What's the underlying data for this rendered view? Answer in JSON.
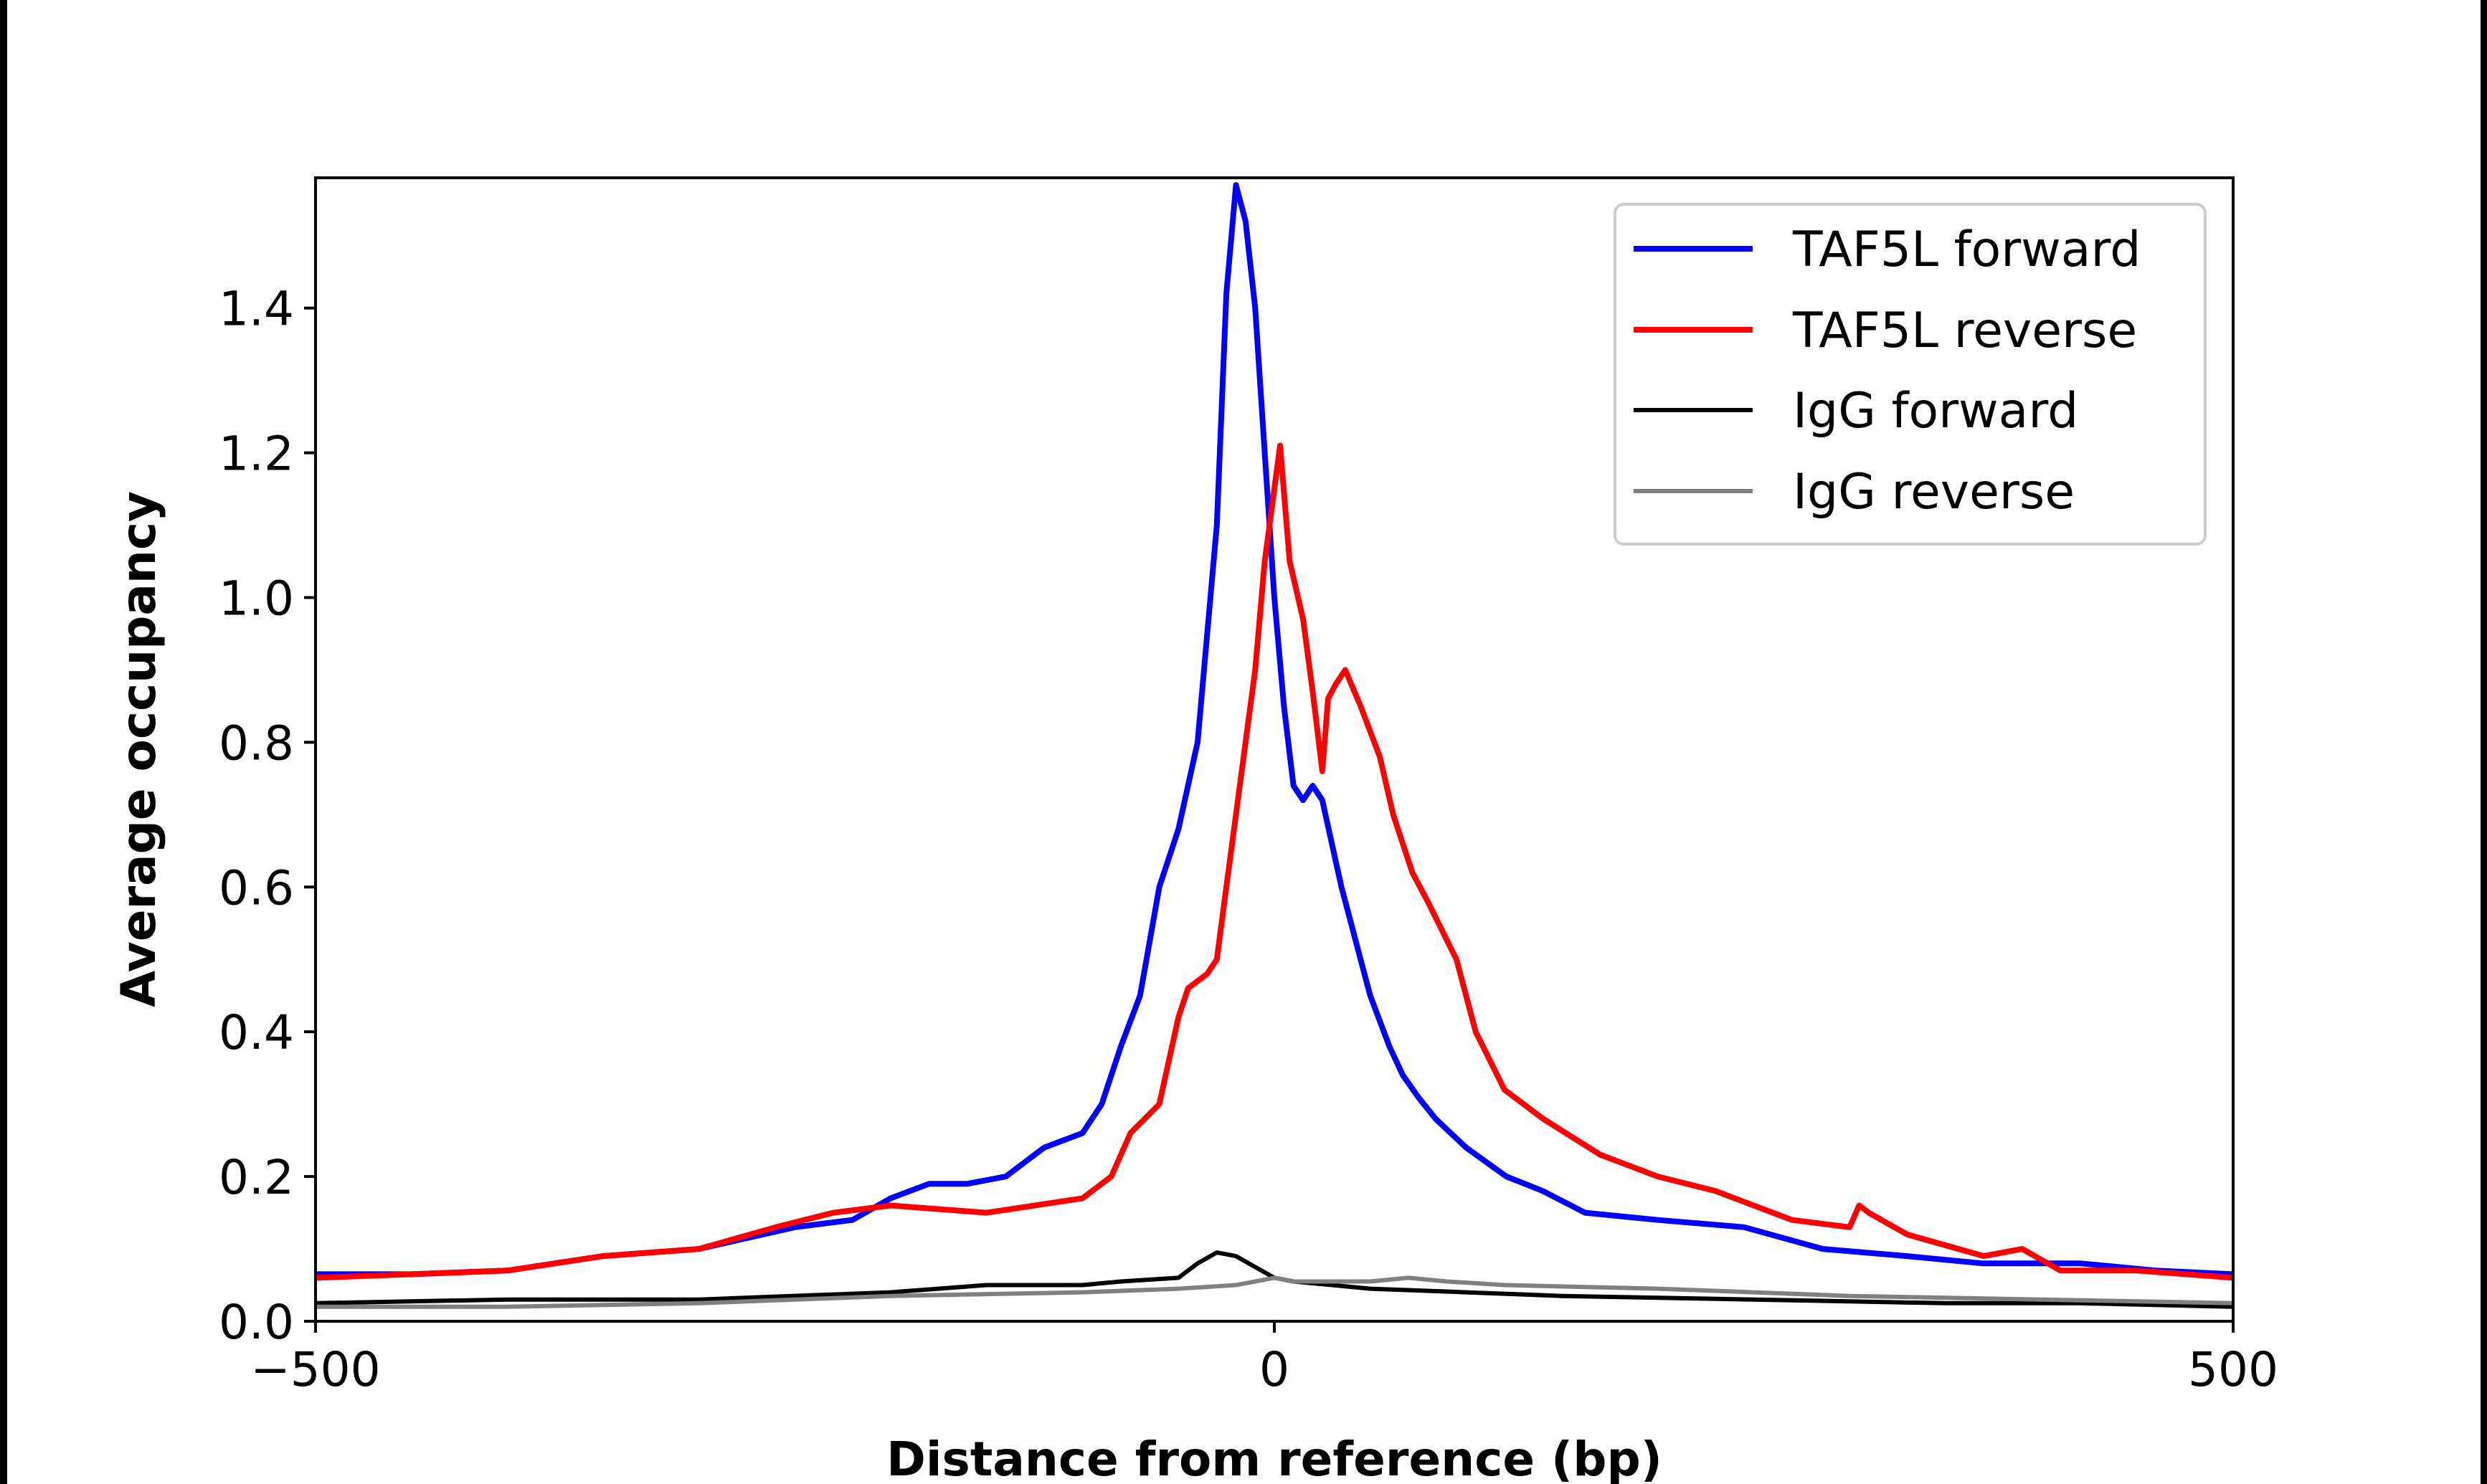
{
  "chart_data": {
    "type": "line",
    "title": "",
    "xlabel": "Distance from reference (bp)",
    "ylabel": "Average occupancy",
    "xlim": [
      -500,
      500
    ],
    "ylim": [
      0,
      1.58
    ],
    "xticks": [
      -500,
      0,
      500
    ],
    "xtick_labels": [
      "−500",
      "0",
      "500"
    ],
    "yticks": [
      0.0,
      0.2,
      0.4,
      0.6,
      0.8,
      1.0,
      1.2,
      1.4
    ],
    "ytick_labels": [
      "0.0",
      "0.2",
      "0.4",
      "0.6",
      "0.8",
      "1.0",
      "1.2",
      "1.4"
    ],
    "grid": false,
    "legend_position": "top-right",
    "series": [
      {
        "name": "TAF5L forward",
        "color": "#0000ff",
        "x": [
          -500,
          -450,
          -400,
          -350,
          -300,
          -250,
          -220,
          -200,
          -180,
          -160,
          -140,
          -120,
          -100,
          -90,
          -80,
          -70,
          -60,
          -50,
          -40,
          -30,
          -25,
          -20,
          -15,
          -10,
          -5,
          0,
          5,
          10,
          15,
          20,
          25,
          30,
          35,
          40,
          45,
          50,
          60,
          67,
          75,
          84,
          100,
          121,
          140,
          162,
          200,
          245,
          286,
          330,
          369,
          420,
          460,
          500
        ],
        "y": [
          0.065,
          0.065,
          0.07,
          0.09,
          0.1,
          0.13,
          0.14,
          0.17,
          0.19,
          0.19,
          0.2,
          0.24,
          0.26,
          0.3,
          0.38,
          0.45,
          0.6,
          0.68,
          0.8,
          1.1,
          1.42,
          1.57,
          1.52,
          1.4,
          1.2,
          1.0,
          0.85,
          0.74,
          0.72,
          0.74,
          0.72,
          0.66,
          0.6,
          0.55,
          0.5,
          0.45,
          0.38,
          0.34,
          0.31,
          0.28,
          0.24,
          0.2,
          0.18,
          0.15,
          0.14,
          0.13,
          0.1,
          0.09,
          0.08,
          0.08,
          0.07,
          0.065
        ]
      },
      {
        "name": "TAF5L reverse",
        "color": "#ff0000",
        "x": [
          -500,
          -450,
          -400,
          -350,
          -300,
          -260,
          -230,
          -200,
          -150,
          -100,
          -85,
          -75,
          -60,
          -50,
          -45,
          -35,
          -30,
          -25,
          -20,
          -15,
          -10,
          -5,
          0,
          3,
          8,
          15,
          20,
          25,
          28,
          32,
          37,
          45,
          55,
          62,
          72,
          80,
          95,
          105,
          120,
          140,
          170,
          200,
          230,
          270,
          300,
          305,
          310,
          330,
          370,
          390,
          410,
          450,
          500
        ],
        "y": [
          0.06,
          0.065,
          0.07,
          0.09,
          0.1,
          0.13,
          0.15,
          0.16,
          0.15,
          0.17,
          0.2,
          0.26,
          0.3,
          0.42,
          0.46,
          0.48,
          0.5,
          0.6,
          0.7,
          0.8,
          0.9,
          1.05,
          1.15,
          1.21,
          1.05,
          0.97,
          0.87,
          0.76,
          0.86,
          0.88,
          0.9,
          0.85,
          0.78,
          0.7,
          0.62,
          0.58,
          0.5,
          0.4,
          0.32,
          0.28,
          0.23,
          0.2,
          0.18,
          0.14,
          0.13,
          0.16,
          0.15,
          0.12,
          0.09,
          0.1,
          0.07,
          0.07,
          0.06
        ]
      },
      {
        "name": "IgG forward",
        "color": "#000000",
        "x": [
          -500,
          -400,
          -300,
          -200,
          -150,
          -100,
          -80,
          -50,
          -40,
          -30,
          -20,
          -10,
          0,
          10,
          30,
          50,
          100,
          150,
          250,
          350,
          420,
          500
        ],
        "y": [
          0.025,
          0.03,
          0.03,
          0.04,
          0.05,
          0.05,
          0.055,
          0.06,
          0.08,
          0.095,
          0.09,
          0.075,
          0.06,
          0.055,
          0.05,
          0.045,
          0.04,
          0.035,
          0.03,
          0.025,
          0.025,
          0.02
        ]
      },
      {
        "name": "IgG reverse",
        "color": "#808080",
        "x": [
          -500,
          -400,
          -300,
          -200,
          -100,
          -50,
          -20,
          -10,
          0,
          10,
          30,
          50,
          70,
          90,
          120,
          200,
          250,
          300,
          400,
          500
        ],
        "y": [
          0.02,
          0.02,
          0.025,
          0.035,
          0.04,
          0.045,
          0.05,
          0.055,
          0.06,
          0.055,
          0.055,
          0.055,
          0.06,
          0.055,
          0.05,
          0.045,
          0.04,
          0.035,
          0.03,
          0.025
        ]
      }
    ]
  }
}
